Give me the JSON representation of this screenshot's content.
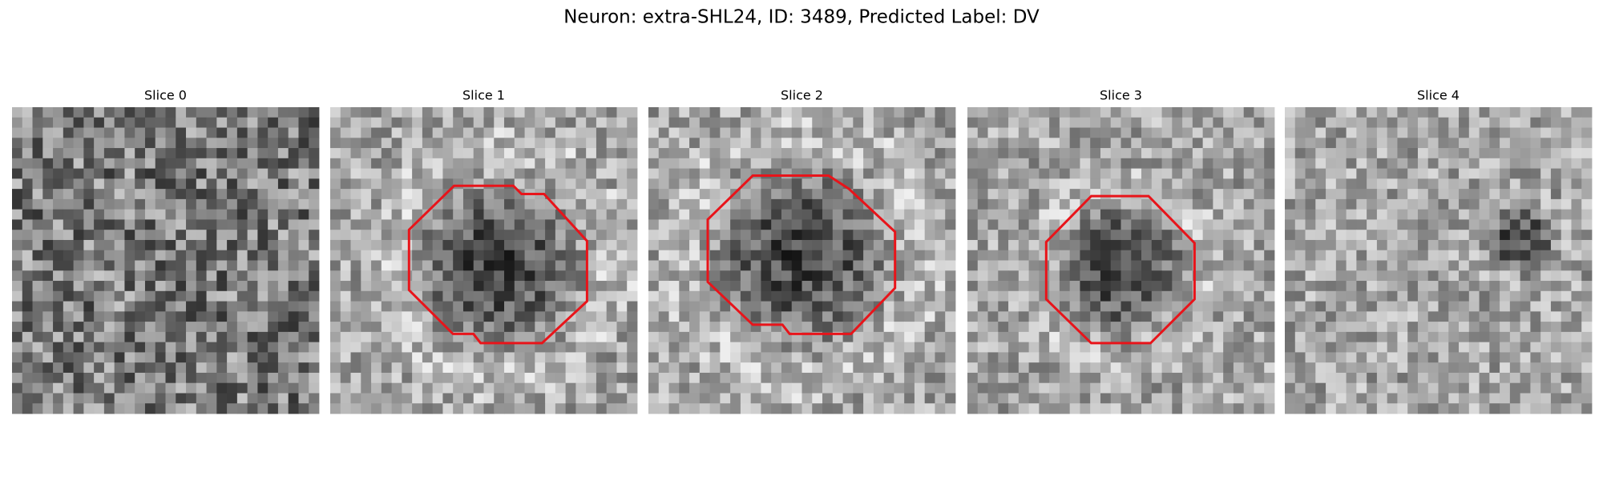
{
  "title": "Neuron: extra-SHL24, ID: 3489, Predicted Label: DV",
  "panels": [
    {
      "label": "Slice 0"
    },
    {
      "label": "Slice 1"
    },
    {
      "label": "Slice 2"
    },
    {
      "label": "Slice 3"
    },
    {
      "label": "Slice 4"
    }
  ]
}
